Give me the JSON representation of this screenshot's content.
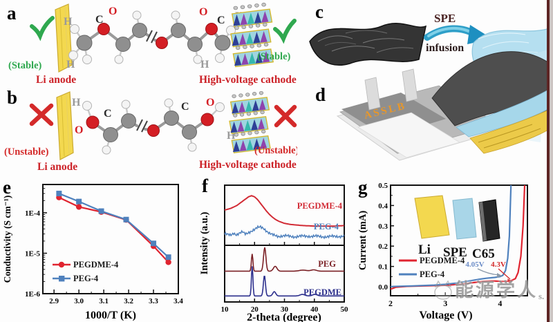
{
  "panels": {
    "a": {
      "label": "a",
      "stable_left": "(Stable)",
      "stable_right": "(Stable)",
      "anode_caption": "Li anode",
      "cathode_caption": "High-voltage cathode",
      "atom_labels": [
        "H",
        "C",
        "O",
        "O",
        "C",
        "H",
        "H",
        "H"
      ]
    },
    "b": {
      "label": "b",
      "unstable_left": "(Unstable)",
      "unstable_right": "(Unstable)",
      "anode_caption": "Li anode",
      "cathode_caption": "High-voltage cathode",
      "atom_labels": [
        "H",
        "O",
        "C",
        "C",
        "O",
        "H"
      ]
    },
    "c": {
      "label": "c",
      "arrow_top": "SPE",
      "arrow_bottom": "infusion"
    },
    "d": {
      "label": "d",
      "device_text": "ASSLB"
    },
    "e": {
      "label": "e"
    },
    "f": {
      "label": "f"
    },
    "g": {
      "label": "g",
      "inset_labels": [
        "Li",
        "SPE",
        "C65"
      ]
    }
  },
  "watermark": {
    "text": "能源学人",
    "suffix": "s."
  },
  "colors": {
    "red_text": "#cc2127",
    "green": "#2fa84f",
    "series_red": "#e02430",
    "series_blue": "#4f81bd",
    "maroon": "#7a1f24",
    "navy": "#2b2e8c",
    "slab_yellow": "#f3d84f",
    "film_blue": "#aedcec",
    "device_orange": "#e8972a"
  },
  "chart_data": [
    {
      "id": "e",
      "type": "line",
      "title": "",
      "xlabel": "1000/T (K)",
      "ylabel": "Conductivity (S cm⁻¹)",
      "x_ticks": [
        2.9,
        3.0,
        3.1,
        3.2,
        3.3,
        3.4
      ],
      "y_tick_labels": [
        "1E-4",
        "1E-5",
        "1E-6"
      ],
      "y_tick_decades": [
        -4,
        -5,
        -6
      ],
      "y_scale": "log",
      "xlim": [
        2.855,
        3.4
      ],
      "ylim_log": [
        -6,
        -3.3
      ],
      "x": [
        2.92,
        3.0,
        3.09,
        3.19,
        3.3,
        3.36
      ],
      "series": [
        {
          "name": "PEGDME-4",
          "color": "#e02430",
          "marker": "circle",
          "values": [
            0.00024,
            0.00014,
            0.000105,
            6.7e-05,
            1.5e-05,
            6e-06
          ]
        },
        {
          "name": "PEG-4",
          "color": "#4f81bd",
          "marker": "square",
          "values": [
            0.0003,
            0.00019,
            0.00011,
            6.8e-05,
            1.75e-05,
            8e-06
          ]
        }
      ],
      "legend_position": "lower-left",
      "grid": false
    },
    {
      "id": "f",
      "type": "line",
      "title": "",
      "xlabel": "2-theta (degree)",
      "ylabel": "Intensity (a.u.)",
      "xlim": [
        10,
        50
      ],
      "x_ticks": [
        10,
        20,
        30,
        40,
        50
      ],
      "x_minor_ticks": [
        15,
        25,
        35,
        45
      ],
      "panels": [
        {
          "series": [
            {
              "name": "PEGDME-4",
              "color": "#d22b35",
              "noise": 0,
              "points": [
                [
                  10,
                  0.6
                ],
                [
                  12,
                  0.63
                ],
                [
                  14,
                  0.68
                ],
                [
                  16,
                  0.76
                ],
                [
                  18,
                  0.84
                ],
                [
                  19,
                  0.86
                ],
                [
                  20,
                  0.84
                ],
                [
                  21,
                  0.79
                ],
                [
                  22,
                  0.72
                ],
                [
                  23,
                  0.65
                ],
                [
                  24,
                  0.58
                ],
                [
                  25,
                  0.52
                ],
                [
                  26,
                  0.47
                ],
                [
                  27,
                  0.43
                ],
                [
                  28,
                  0.4
                ],
                [
                  30,
                  0.36
                ],
                [
                  32,
                  0.34
                ],
                [
                  34,
                  0.33
                ],
                [
                  36,
                  0.32
                ],
                [
                  40,
                  0.31
                ],
                [
                  44,
                  0.31
                ],
                [
                  47,
                  0.31
                ],
                [
                  50,
                  0.32
                ]
              ]
            },
            {
              "name": "PEG-4",
              "color": "#4f81bd",
              "noise": 0.02,
              "points": [
                [
                  10,
                  0.16
                ],
                [
                  12,
                  0.15
                ],
                [
                  13,
                  0.19
                ],
                [
                  14,
                  0.15
                ],
                [
                  16,
                  0.2
                ],
                [
                  17,
                  0.17
                ],
                [
                  18,
                  0.2
                ],
                [
                  19,
                  0.22
                ],
                [
                  20,
                  0.24
                ],
                [
                  21,
                  0.28
                ],
                [
                  22,
                  0.3
                ],
                [
                  23,
                  0.28
                ],
                [
                  24,
                  0.22
                ],
                [
                  25,
                  0.17
                ],
                [
                  26,
                  0.15
                ],
                [
                  28,
                  0.13
                ],
                [
                  30,
                  0.13
                ],
                [
                  34,
                  0.12
                ],
                [
                  38,
                  0.13
                ],
                [
                  42,
                  0.12
                ],
                [
                  46,
                  0.12
                ],
                [
                  50,
                  0.13
                ]
              ]
            }
          ]
        },
        {
          "series": [
            {
              "name": "PEG",
              "color": "#7a1f24",
              "baseline": 0.52,
              "peaks": [
                {
                  "c": 19.2,
                  "h": 0.32,
                  "w": 0.25
                },
                {
                  "c": 23.4,
                  "h": 0.44,
                  "w": 0.4
                },
                {
                  "c": 26.9,
                  "h": 0.09,
                  "w": 0.6
                },
                {
                  "c": 36.2,
                  "h": 0.02,
                  "w": 1.2
                },
                {
                  "c": 39.8,
                  "h": 0.025,
                  "w": 0.9
                }
              ]
            },
            {
              "name": "PEGDME",
              "color": "#2b2e8c",
              "baseline": 0.06,
              "peaks": [
                {
                  "c": 19.2,
                  "h": 0.55,
                  "w": 0.25
                },
                {
                  "c": 23.3,
                  "h": 0.38,
                  "w": 0.35
                },
                {
                  "c": 26.6,
                  "h": 0.08,
                  "w": 0.5
                },
                {
                  "c": 36.0,
                  "h": 0.03,
                  "w": 0.8
                },
                {
                  "c": 40.2,
                  "h": 0.03,
                  "w": 0.8
                }
              ]
            }
          ]
        }
      ]
    },
    {
      "id": "g",
      "type": "line",
      "title": "",
      "xlabel": "Voltage (V)",
      "ylabel": "Current (mA)",
      "xlim": [
        2,
        4.5
      ],
      "x_ticks": [
        2,
        3,
        4
      ],
      "x_minor_ticks": [
        2.5,
        3.5
      ],
      "ylim": [
        -0.045,
        0.5
      ],
      "y_ticks": [
        0.0,
        0.1,
        0.2,
        0.3,
        0.4,
        0.5
      ],
      "series": [
        {
          "name": "PEGDME-4",
          "color": "#e02430",
          "points": [
            [
              2.0,
              -0.012
            ],
            [
              2.1,
              -0.002
            ],
            [
              2.3,
              0.002
            ],
            [
              2.6,
              0.004
            ],
            [
              3.0,
              0.007
            ],
            [
              3.3,
              0.013
            ],
            [
              3.5,
              0.02
            ],
            [
              3.7,
              0.027
            ],
            [
              3.85,
              0.029
            ],
            [
              4.0,
              0.027
            ],
            [
              4.1,
              0.026
            ],
            [
              4.2,
              0.03
            ],
            [
              4.28,
              0.04
            ],
            [
              4.33,
              0.07
            ],
            [
              4.38,
              0.15
            ],
            [
              4.42,
              0.3
            ],
            [
              4.45,
              0.5
            ]
          ]
        },
        {
          "name": "PEG-4",
          "color": "#4f81bd",
          "points": [
            [
              2.0,
              0.001
            ],
            [
              2.4,
              0.004
            ],
            [
              2.8,
              0.008
            ],
            [
              3.0,
              0.012
            ],
            [
              3.2,
              0.018
            ],
            [
              3.4,
              0.027
            ],
            [
              3.6,
              0.036
            ],
            [
              3.75,
              0.042
            ],
            [
              3.9,
              0.046
            ],
            [
              4.0,
              0.05
            ],
            [
              4.05,
              0.056
            ],
            [
              4.1,
              0.08
            ],
            [
              4.14,
              0.14
            ],
            [
              4.17,
              0.25
            ],
            [
              4.2,
              0.5
            ]
          ]
        }
      ],
      "annotations": [
        {
          "text": "4.05V",
          "color": "#6b8cc7"
        },
        {
          "text": "4.3V",
          "color": "#d42a2a"
        }
      ],
      "legend_position": "center-left"
    }
  ]
}
